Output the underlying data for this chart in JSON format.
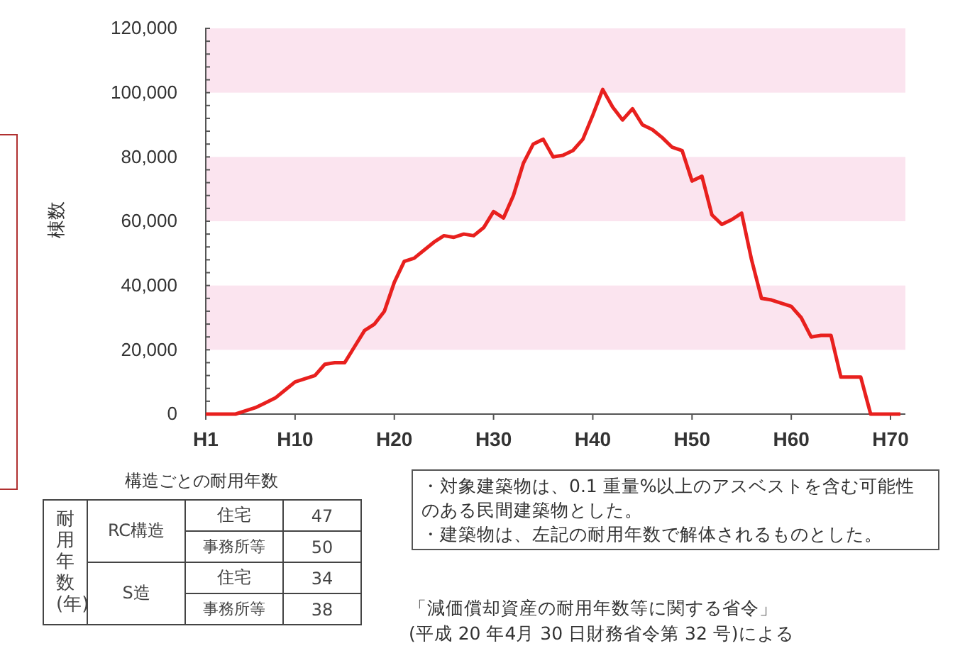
{
  "chart_data": {
    "type": "line",
    "ylabel": "棟数",
    "categories": [
      "H1",
      null,
      null,
      null,
      null,
      null,
      null,
      null,
      null,
      "H10",
      null,
      null,
      null,
      null,
      null,
      null,
      null,
      null,
      null,
      "H20",
      null,
      null,
      null,
      null,
      null,
      null,
      null,
      null,
      null,
      "H30",
      null,
      null,
      null,
      null,
      null,
      null,
      null,
      null,
      null,
      "H40",
      null,
      null,
      null,
      null,
      null,
      null,
      null,
      null,
      null,
      "H50",
      null,
      null,
      null,
      null,
      null,
      null,
      null,
      null,
      null,
      "H60",
      null,
      null,
      null,
      null,
      null,
      null,
      null,
      null,
      null,
      "H70",
      null
    ],
    "series": [
      {
        "color": "#e8201e",
        "values": [
          0,
          0,
          0,
          0,
          1000,
          2000,
          3500,
          5000,
          7500,
          10000,
          11000,
          12000,
          15500,
          16000,
          16000,
          21000,
          26000,
          28000,
          32000,
          41000,
          47500,
          48500,
          51000,
          53500,
          55500,
          55000,
          56000,
          55500,
          58000,
          63000,
          61000,
          68000,
          78000,
          84000,
          85500,
          80000,
          80500,
          82000,
          85500,
          93000,
          101000,
          95500,
          91500,
          95000,
          90000,
          88500,
          86000,
          83000,
          82000,
          72500,
          74000,
          62000,
          59000,
          60500,
          62500,
          48000,
          36000,
          35500,
          34500,
          33500,
          30000,
          24000,
          24500,
          24500,
          11500,
          11500,
          11500,
          0,
          0,
          0,
          0
        ]
      }
    ],
    "ylim": [
      0,
      120000
    ],
    "yticks": [
      {
        "value": 0,
        "label": "0"
      },
      {
        "value": 4000,
        "label": null
      },
      {
        "value": 8000,
        "label": null
      },
      {
        "value": 12000,
        "label": null
      },
      {
        "value": 16000,
        "label": null
      },
      {
        "value": 20000,
        "label": "20,000"
      },
      {
        "value": 24000,
        "label": null
      },
      {
        "value": 28000,
        "label": null
      },
      {
        "value": 32000,
        "label": null
      },
      {
        "value": 36000,
        "label": null
      },
      {
        "value": 40000,
        "label": "40,000"
      },
      {
        "value": 44000,
        "label": null
      },
      {
        "value": 48000,
        "label": null
      },
      {
        "value": 52000,
        "label": null
      },
      {
        "value": 56000,
        "label": null
      },
      {
        "value": 60000,
        "label": "60,000"
      },
      {
        "value": 64000,
        "label": null
      },
      {
        "value": 68000,
        "label": null
      },
      {
        "value": 72000,
        "label": null
      },
      {
        "value": 76000,
        "label": null
      },
      {
        "value": 80000,
        "label": "80,000"
      },
      {
        "value": 84000,
        "label": null
      },
      {
        "value": 88000,
        "label": null
      },
      {
        "value": 92000,
        "label": null
      },
      {
        "value": 96000,
        "label": null
      },
      {
        "value": 100000,
        "label": "100,000"
      },
      {
        "value": 104000,
        "label": null
      },
      {
        "value": 108000,
        "label": null
      },
      {
        "value": 112000,
        "label": null
      },
      {
        "value": 116000,
        "label": null
      },
      {
        "value": 120000,
        "label": "120,000"
      }
    ],
    "bands": [
      {
        "axis": "y",
        "from": 20000,
        "to": 40000,
        "color": "#fbe4ef"
      },
      {
        "axis": "y",
        "from": 60000,
        "to": 80000,
        "color": "#fbe4ef"
      },
      {
        "axis": "y",
        "from": 100000,
        "to": 120000,
        "color": "#fbe4ef"
      }
    ],
    "grid": false,
    "marker": "none",
    "line_style": "solid",
    "annotations": [
      "構造ごとの耐用年数",
      "耐用年数(年)",
      "RC構造",
      "住宅",
      "47",
      "事務所等",
      "50",
      "S造",
      "住宅",
      "34",
      "事務所等",
      "38",
      "・対象建築物は、0.1 重量%以上のアスベストを含む可能性のある民間建築物とした。",
      "・建築物は、左記の耐用年数で解体されるものとした。",
      "「減価償却資産の耐用年数等に関する省令」",
      "(平成 20 年4月 30 日財務省令第 32 号)による"
    ]
  }
}
